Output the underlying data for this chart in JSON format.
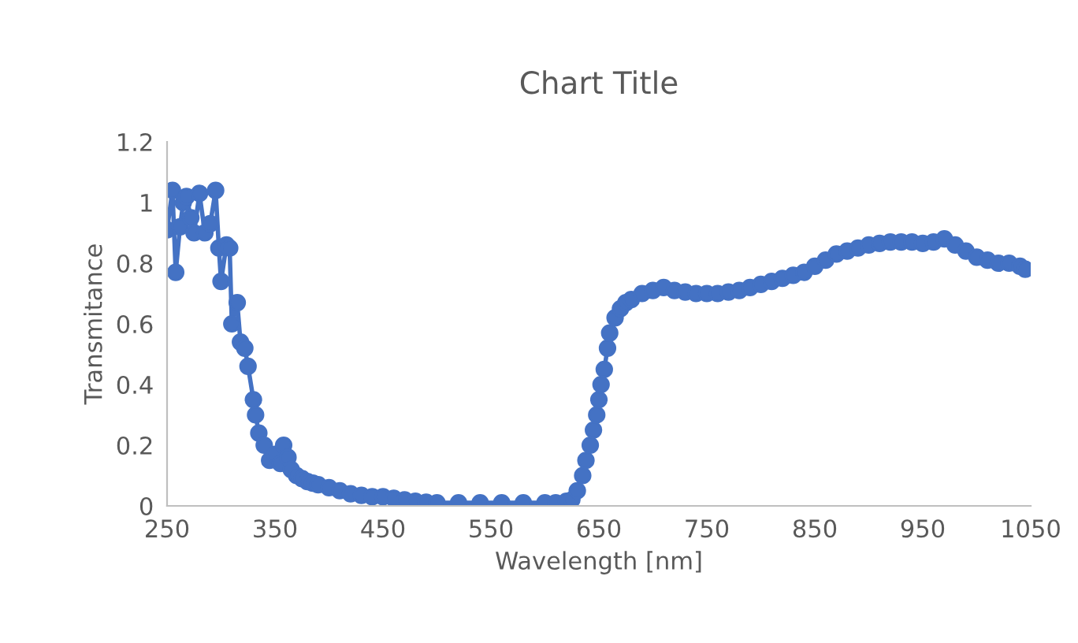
{
  "chart_data": {
    "type": "line",
    "title": "Chart Title",
    "xlabel": "Wavelength [nm]",
    "ylabel": "Transmitance",
    "marker": "circle",
    "line_style": "solid",
    "grid": false,
    "legend": false,
    "xlim": [
      250,
      1050
    ],
    "xticks": [
      250,
      350,
      450,
      550,
      650,
      750,
      850,
      950,
      1050
    ],
    "ylim": [
      0,
      1.2
    ],
    "yticks": [
      0,
      0.2,
      0.4,
      0.6,
      0.8,
      1,
      1.2
    ],
    "series": [
      {
        "color": "#4472c4",
        "x": [
          250,
          255,
          258,
          262,
          265,
          268,
          272,
          275,
          280,
          285,
          290,
          295,
          298,
          300,
          305,
          308,
          310,
          315,
          318,
          322,
          325,
          330,
          332,
          335,
          340,
          345,
          350,
          355,
          358,
          362,
          365,
          370,
          375,
          380,
          385,
          390,
          400,
          410,
          420,
          430,
          440,
          450,
          460,
          470,
          480,
          490,
          500,
          520,
          540,
          560,
          580,
          600,
          610,
          620,
          625,
          630,
          635,
          638,
          642,
          645,
          648,
          650,
          652,
          655,
          658,
          660,
          665,
          670,
          675,
          680,
          690,
          700,
          710,
          720,
          730,
          740,
          750,
          760,
          770,
          780,
          790,
          800,
          810,
          820,
          830,
          840,
          850,
          860,
          870,
          880,
          890,
          900,
          910,
          920,
          930,
          940,
          950,
          960,
          970,
          980,
          990,
          1000,
          1010,
          1020,
          1030,
          1040,
          1045
        ],
        "values": [
          0.91,
          1.04,
          0.77,
          0.92,
          1.0,
          1.02,
          0.95,
          0.9,
          1.03,
          0.9,
          0.93,
          1.04,
          0.85,
          0.74,
          0.86,
          0.85,
          0.6,
          0.67,
          0.54,
          0.52,
          0.46,
          0.35,
          0.3,
          0.24,
          0.2,
          0.15,
          0.17,
          0.14,
          0.2,
          0.16,
          0.12,
          0.1,
          0.09,
          0.08,
          0.075,
          0.07,
          0.06,
          0.05,
          0.04,
          0.035,
          0.03,
          0.03,
          0.025,
          0.02,
          0.015,
          0.012,
          0.01,
          0.01,
          0.01,
          0.01,
          0.01,
          0.01,
          0.01,
          0.015,
          0.02,
          0.05,
          0.1,
          0.15,
          0.2,
          0.25,
          0.3,
          0.35,
          0.4,
          0.45,
          0.52,
          0.57,
          0.62,
          0.65,
          0.67,
          0.68,
          0.7,
          0.71,
          0.72,
          0.71,
          0.705,
          0.7,
          0.7,
          0.7,
          0.705,
          0.71,
          0.72,
          0.73,
          0.74,
          0.75,
          0.76,
          0.77,
          0.79,
          0.81,
          0.83,
          0.84,
          0.85,
          0.86,
          0.865,
          0.87,
          0.87,
          0.87,
          0.865,
          0.87,
          0.88,
          0.86,
          0.84,
          0.82,
          0.81,
          0.8,
          0.8,
          0.79,
          0.78
        ]
      }
    ]
  }
}
